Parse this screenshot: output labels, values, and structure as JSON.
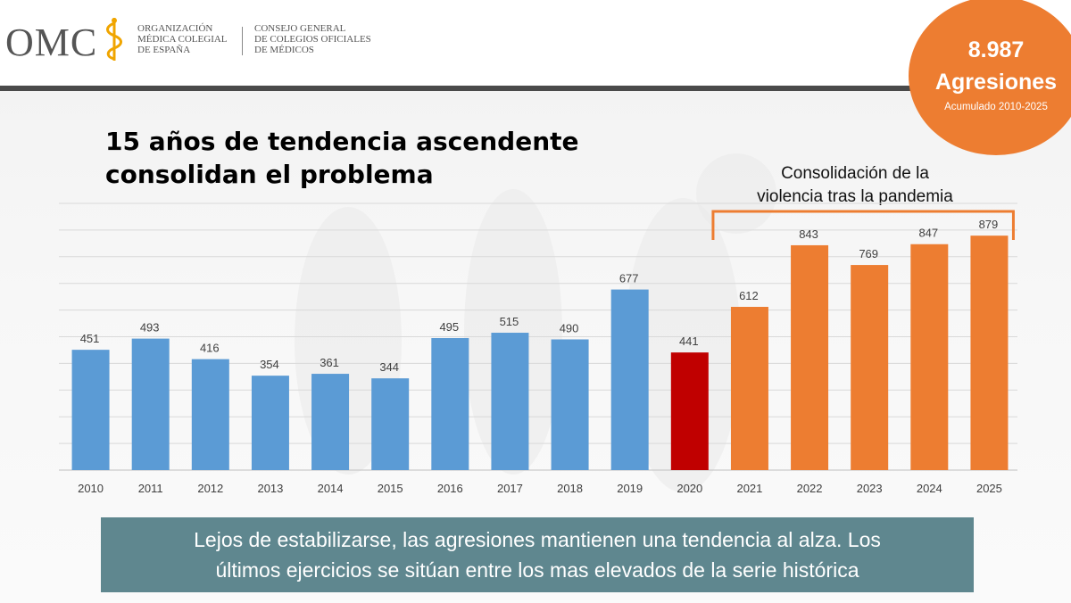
{
  "header": {
    "logo_text": "OMC",
    "org_line1": "Organización",
    "org_line2": "Médica Colegial",
    "org_line3": "de España",
    "council_line1": "Consejo General",
    "council_line2": "de Colegios Oficiales",
    "council_line3": "de Médicos"
  },
  "badge": {
    "number": "8.987",
    "label": "Agresiones",
    "subtitle": "Acumulado 2010-2025",
    "color": "#ed7d31"
  },
  "slide": {
    "title_line1": "15 años de tendencia ascendente",
    "title_line2": "consolidan el problema",
    "annotation_line1": "Consolidación de la",
    "annotation_line2": "violencia tras la pandemia",
    "footer_line1": "Lejos de estabilizarse, las agresiones mantienen una tendencia al alza. Los",
    "footer_line2": "últimos ejercicios se sitúan entre los mas elevados de la serie histórica"
  },
  "chart_data": {
    "type": "bar",
    "title": "",
    "xlabel": "",
    "ylabel": "",
    "categories": [
      "2010",
      "2011",
      "2012",
      "2013",
      "2014",
      "2015",
      "2016",
      "2017",
      "2018",
      "2019",
      "2020",
      "2021",
      "2022",
      "2023",
      "2024",
      "2025"
    ],
    "values": [
      451,
      493,
      416,
      354,
      361,
      344,
      495,
      515,
      490,
      677,
      441,
      612,
      843,
      769,
      847,
      879
    ],
    "bar_colors": [
      "#5b9bd5",
      "#5b9bd5",
      "#5b9bd5",
      "#5b9bd5",
      "#5b9bd5",
      "#5b9bd5",
      "#5b9bd5",
      "#5b9bd5",
      "#5b9bd5",
      "#5b9bd5",
      "#c00000",
      "#ed7d31",
      "#ed7d31",
      "#ed7d31",
      "#ed7d31",
      "#ed7d31"
    ],
    "ylim": [
      0,
      1000
    ],
    "grid": true,
    "data_labels": true,
    "bracket_over": [
      "2021",
      "2025"
    ]
  }
}
